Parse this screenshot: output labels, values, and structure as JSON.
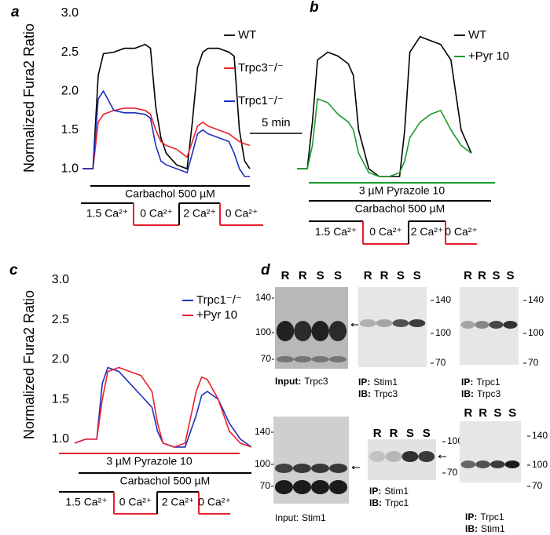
{
  "chart_data": [
    {
      "type": "line",
      "panel_label": "a",
      "y_label": "Normalized Fura2 Ratio",
      "x": [
        0,
        1,
        1.5,
        2,
        3,
        4,
        5,
        6,
        6.5,
        7,
        7.5,
        8,
        9,
        10,
        10.5,
        11,
        11.5,
        12,
        13,
        14,
        14.5,
        15,
        15.5,
        16
      ],
      "series": [
        {
          "name": "WT",
          "color": "#000000",
          "values": [
            1.0,
            1.0,
            2.2,
            2.48,
            2.5,
            2.55,
            2.55,
            2.6,
            2.55,
            1.8,
            1.4,
            1.2,
            1.05,
            1.0,
            1.6,
            2.3,
            2.5,
            2.55,
            2.55,
            2.5,
            2.45,
            1.5,
            1.1,
            1.0
          ]
        },
        {
          "name": "Trpc3⁻/⁻",
          "color": "#e8202a",
          "values": [
            1.0,
            1.0,
            1.6,
            1.7,
            1.75,
            1.78,
            1.78,
            1.75,
            1.7,
            1.5,
            1.35,
            1.3,
            1.25,
            1.15,
            1.35,
            1.55,
            1.6,
            1.55,
            1.5,
            1.45,
            1.4,
            1.35,
            1.32,
            1.3
          ]
        },
        {
          "name": "Trpc1⁻/⁻",
          "color": "#1f2fbf",
          "values": [
            1.0,
            1.0,
            1.9,
            2.0,
            1.75,
            1.72,
            1.72,
            1.7,
            1.65,
            1.3,
            1.1,
            1.05,
            1.0,
            0.95,
            1.2,
            1.45,
            1.5,
            1.45,
            1.4,
            1.35,
            1.2,
            1.0,
            0.9,
            0.9
          ]
        }
      ],
      "xlim": [
        0,
        16
      ],
      "ylim": [
        0.85,
        3.0
      ],
      "yticks": [
        {
          "value": 1.0,
          "label": "1.0"
        },
        1.5,
        {
          "value": 2.0,
          "label": "2.0"
        },
        2.5,
        {
          "value": 3.0,
          "label": "3.0"
        }
      ],
      "annotations": [
        {
          "text": "Carbachol 500 µM",
          "color": "#000000"
        }
      ],
      "protocol": [
        {
          "label": "1.5 Ca²⁺",
          "color": "#000000"
        },
        {
          "label": "0 Ca²⁺",
          "color": "#e8202a"
        },
        {
          "label": "2 Ca²⁺",
          "color": "#000000"
        },
        {
          "label": "0 Ca²⁺",
          "color": "#e8202a"
        }
      ]
    },
    {
      "type": "line",
      "panel_label": "b",
      "x": [
        0,
        1,
        1.5,
        2,
        3,
        4,
        5,
        5.5,
        6,
        7,
        8,
        9,
        10,
        10.5,
        11,
        12,
        13,
        14,
        15,
        16,
        17
      ],
      "series": [
        {
          "name": "WT",
          "color": "#000000",
          "values": [
            1.0,
            1.0,
            1.6,
            2.4,
            2.5,
            2.45,
            2.35,
            2.2,
            1.5,
            1.0,
            0.9,
            0.9,
            0.9,
            1.5,
            2.5,
            2.7,
            2.65,
            2.6,
            2.4,
            1.5,
            1.2
          ]
        },
        {
          "name": "+Pyr 10",
          "color": "#1a9c2a",
          "values": [
            1.0,
            1.0,
            1.3,
            1.9,
            1.85,
            1.7,
            1.6,
            1.5,
            1.2,
            0.95,
            0.9,
            0.9,
            0.95,
            1.1,
            1.4,
            1.6,
            1.7,
            1.75,
            1.5,
            1.3,
            1.2
          ]
        }
      ],
      "xlim": [
        0,
        17
      ],
      "ylim": [
        0.85,
        3.0
      ],
      "annotations": [
        {
          "text": "3 µM Pyrazole 10",
          "color": "#1a9c2a"
        },
        {
          "text": "Carbachol 500 µM",
          "color": "#000000"
        }
      ],
      "protocol": [
        {
          "label": "1.5 Ca²⁺",
          "color": "#000000"
        },
        {
          "label": "0 Ca²⁺",
          "color": "#e8202a"
        },
        {
          "label": "2 Ca²⁺",
          "color": "#000000"
        },
        {
          "label": "0 Ca²⁺",
          "color": "#e8202a"
        }
      ]
    },
    {
      "type": "line",
      "panel_label": "c",
      "y_label": "Normalized Fura2 Ratio",
      "x": [
        0,
        1,
        2,
        2.5,
        3,
        4,
        5,
        6,
        7,
        7.5,
        8,
        9,
        10,
        11,
        11.5,
        12,
        13,
        14,
        15,
        16
      ],
      "series": [
        {
          "name": "Trpc1⁻/⁻",
          "color": "#1f2fbf",
          "values": [
            0.95,
            1.0,
            1.0,
            1.7,
            1.9,
            1.85,
            1.7,
            1.55,
            1.4,
            1.1,
            0.95,
            0.9,
            0.9,
            1.3,
            1.55,
            1.6,
            1.5,
            1.2,
            1.0,
            0.9
          ]
        },
        {
          "name": "+Pyr 10",
          "color": "#e8202a",
          "values": [
            0.95,
            1.0,
            1.0,
            1.5,
            1.85,
            1.9,
            1.85,
            1.8,
            1.6,
            1.2,
            0.95,
            0.9,
            0.95,
            1.6,
            1.78,
            1.75,
            1.5,
            1.1,
            0.95,
            0.9
          ]
        }
      ],
      "xlim": [
        0,
        16
      ],
      "ylim": [
        0.85,
        3.0
      ],
      "yticks": [
        {
          "value": 1.0,
          "label": "1.0"
        },
        1.5,
        {
          "value": 2.0,
          "label": "2.0"
        },
        2.5,
        {
          "value": 3.0,
          "label": "3.0"
        }
      ],
      "annotations": [
        {
          "text": "3 µM Pyrazole 10",
          "color": "#e8202a"
        },
        {
          "text": "Carbachol 500 µM",
          "color": "#000000"
        }
      ],
      "protocol": [
        {
          "label": "1.5 Ca²⁺",
          "color": "#000000"
        },
        {
          "label": "0 Ca²⁺",
          "color": "#e8202a"
        },
        {
          "label": "2 Ca²⁺",
          "color": "#000000"
        },
        {
          "label": "0 Ca²⁺",
          "color": "#e8202a"
        }
      ]
    }
  ],
  "scale_bar": {
    "label": "5 min",
    "minutes": 5
  },
  "blot_panel_label": "d",
  "blots": [
    {
      "lanes": [
        "R",
        "R",
        "S",
        "S"
      ],
      "markers": [
        140,
        100,
        70
      ],
      "bold_keys": true,
      "caption": [
        {
          "key": "Input:",
          "text": "Trpc3"
        }
      ]
    },
    {
      "lanes": [
        "R",
        "R",
        "S",
        "S"
      ],
      "markers": [
        140,
        100,
        70
      ],
      "bold_keys": true,
      "caption": [
        {
          "key": "IP:",
          "text": "Stim1"
        },
        {
          "key": "IB:",
          "text": "Trpc3"
        }
      ]
    },
    {
      "lanes": [
        "R",
        "R",
        "S",
        "S"
      ],
      "markers": [
        140,
        100,
        70
      ],
      "bold_keys": true,
      "caption": [
        {
          "key": "IP:",
          "text": "Trpc1"
        },
        {
          "key": "IB:",
          "text": "Trpc3"
        }
      ]
    },
    {
      "lanes": [],
      "markers": [
        140,
        100,
        70
      ],
      "bold_keys": false,
      "caption": [
        {
          "key": "Input:",
          "text": "Stim1"
        }
      ]
    },
    {
      "lanes": [
        "R",
        "R",
        "S",
        "S"
      ],
      "markers": [
        100,
        70
      ],
      "bold_keys": true,
      "caption": [
        {
          "key": "IP:",
          "text": "Stim1"
        },
        {
          "key": "IB:",
          "text": "Trpc1"
        }
      ]
    },
    {
      "lanes": [
        "R",
        "R",
        "S",
        "S"
      ],
      "markers": [
        140,
        100,
        70
      ],
      "bold_keys": true,
      "caption": [
        {
          "key": "IP:",
          "text": "Trpc1"
        },
        {
          "key": "IB:",
          "text": "Stim1"
        }
      ]
    }
  ]
}
